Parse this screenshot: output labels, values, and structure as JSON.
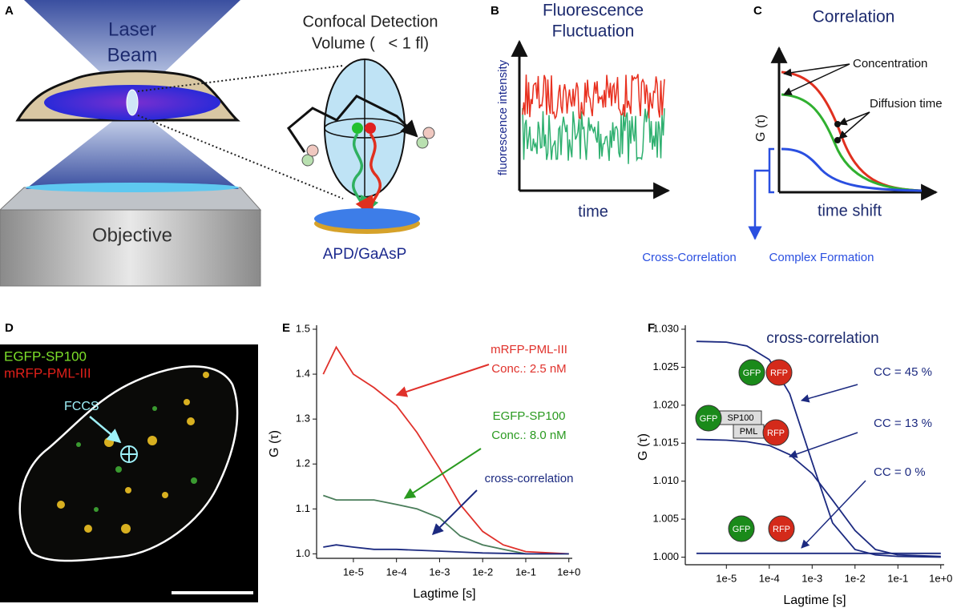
{
  "panel_a": {
    "label": "A",
    "laser": [
      "Laser",
      "Beam"
    ],
    "objective": "Objective",
    "volume_title": "Confocal Detection",
    "volume_sub": "Volume (   < 1 fl)",
    "detector": "APD/GaAsP"
  },
  "panel_b": {
    "label": "B",
    "title": [
      "Fluorescence",
      "Fluctuation"
    ],
    "ylabel": "fluorescence intensity",
    "xlabel": "time"
  },
  "panel_c": {
    "label": "C",
    "title": "Correlation",
    "annotations": [
      "Concentration",
      "Diffusion time"
    ],
    "ylabel": "G (τ)",
    "xlabel": "time shift",
    "cross": "Cross-Correlation",
    "complex": "Complex Formation"
  },
  "panel_d": {
    "label": "D",
    "channels": [
      "EGFP-SP100",
      "mRFP-PML-III"
    ],
    "marker": "FCCS"
  },
  "chart_data": [
    {
      "type": "line",
      "label": "E",
      "log_x": true,
      "xlabel": "Lagtime [s]",
      "ylabel": "G (τ)",
      "xlim": [
        1.4e-06,
        1.2
      ],
      "ylim": [
        0.99,
        1.5
      ],
      "xticks": [
        {
          "value": 1e-05,
          "label": "1e-5"
        },
        {
          "value": 0.0001,
          "label": "1e-4"
        },
        {
          "value": 0.001,
          "label": "1e-3"
        },
        {
          "value": 0.01,
          "label": "1e-2"
        },
        {
          "value": 0.1,
          "label": "1e-1"
        },
        {
          "value": 1,
          "label": "1e+0"
        }
      ],
      "yticks": [
        {
          "value": 1,
          "label": "1.0"
        },
        1.1,
        1.2,
        1.3,
        1.4,
        1.5
      ],
      "x": [
        2e-06,
        4e-06,
        1e-05,
        3e-05,
        0.0001,
        0.0003,
        0.001,
        0.003,
        0.01,
        0.03,
        0.1,
        1
      ],
      "series": [
        {
          "color": "#e0312b",
          "values": [
            1.4,
            1.46,
            1.4,
            1.37,
            1.33,
            1.27,
            1.19,
            1.11,
            1.05,
            1.02,
            1.005,
            1.0
          ]
        },
        {
          "color": "#4a7d5a",
          "values": [
            1.13,
            1.12,
            1.12,
            1.12,
            1.11,
            1.1,
            1.08,
            1.04,
            1.02,
            1.01,
            1.0,
            1.0
          ]
        },
        {
          "color": "#1c2a80",
          "values": [
            1.015,
            1.02,
            1.015,
            1.01,
            1.01,
            1.008,
            1.006,
            1.004,
            1.002,
            1.001,
            1.0,
            1.0
          ]
        }
      ],
      "annotations": [
        [
          "mRFP-PML-III",
          "Conc.: 2.5 nM"
        ],
        [
          "EGFP-SP100",
          "Conc.: 8.0 nM"
        ],
        [
          "cross-correlation"
        ]
      ]
    },
    {
      "type": "line",
      "label": "F",
      "log_x": true,
      "title": "cross-correlation",
      "xlabel": "Lagtime [s]",
      "ylabel": "G (τ)",
      "xlim": [
        1.1e-06,
        1.2
      ],
      "ylim": [
        0.999,
        1.03
      ],
      "xticks": [
        {
          "value": 1e-05,
          "label": "1e-5"
        },
        {
          "value": 0.0001,
          "label": "1e-4"
        },
        {
          "value": 0.001,
          "label": "1e-3"
        },
        {
          "value": 0.01,
          "label": "1e-2"
        },
        {
          "value": 0.1,
          "label": "1e-1"
        },
        {
          "value": 1,
          "label": "1e+0"
        }
      ],
      "yticks": [
        {
          "value": 1,
          "label": "1.000"
        },
        1.005,
        {
          "value": 1.01,
          "label": "1.010"
        },
        1.015,
        {
          "value": 1.02,
          "label": "1.020"
        },
        1.025,
        {
          "value": 1.03,
          "label": "1.030"
        }
      ],
      "x": [
        2e-06,
        1e-05,
        3e-05,
        0.0001,
        0.0003,
        0.001,
        0.003,
        0.01,
        0.03,
        0.1,
        1
      ],
      "series": [
        {
          "color": "#1c2a80",
          "values": [
            1.0284,
            1.0283,
            1.0278,
            1.026,
            1.0215,
            1.0125,
            1.0045,
            1.001,
            1.0003,
            1.0001,
            1.0
          ]
        },
        {
          "color": "#1c2a80",
          "values": [
            1.0155,
            1.0154,
            1.0152,
            1.0147,
            1.0135,
            1.011,
            1.0075,
            1.0035,
            1.001,
            1.0003,
            1.0001
          ]
        },
        {
          "color": "#1c2a80",
          "values": [
            1.0005,
            1.0005,
            1.0005,
            1.0005,
            1.0005,
            1.0005,
            1.0005,
            1.0005,
            1.0005,
            1.0005,
            1.0005
          ]
        }
      ],
      "annotations": [
        "CC = 45 %",
        "CC = 13 %",
        "CC = 0 %"
      ],
      "proteins": {
        "gfp": "GFP",
        "rfp": "RFP",
        "sp100": "SP100",
        "pml": "PML"
      }
    }
  ]
}
